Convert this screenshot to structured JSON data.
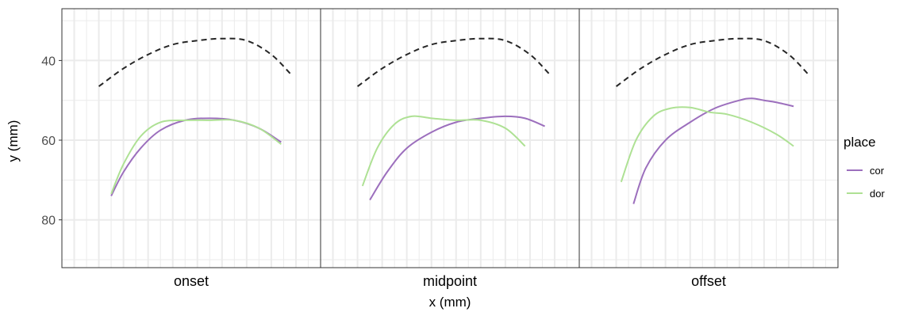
{
  "chart_data": {
    "type": "line",
    "xlabel": "x (mm)",
    "ylabel": "y (mm)",
    "ylim": [
      92,
      27
    ],
    "y_reversed": true,
    "y_ticks": [
      40,
      60,
      80
    ],
    "x_ticks": [],
    "grid": true,
    "legend": {
      "title": "place",
      "placement": "right",
      "entries": [
        "cor",
        "dor"
      ]
    },
    "colors": {
      "cor": "#9c6fbd",
      "dor": "#aee194",
      "reference": "#262626",
      "frame": "#333333",
      "grid": "#ebebeb"
    },
    "xlim": [
      -5,
      100
    ],
    "panels": [
      {
        "label": "onset",
        "series": [
          {
            "name": "reference",
            "style": "dashed",
            "x": [
              10,
              20,
              30,
              40,
              50,
              60,
              70,
              80,
              88
            ],
            "y": [
              46.5,
              42,
              38.5,
              36,
              35,
              34.5,
              35,
              38.5,
              43.5
            ]
          },
          {
            "name": "cor",
            "style": "solid",
            "x": [
              15,
              20,
              27,
              35,
              45,
              55,
              65,
              75,
              84
            ],
            "y": [
              74,
              68,
              62,
              57.5,
              55,
              54.5,
              55,
              57,
              60.5
            ]
          },
          {
            "name": "dor",
            "style": "solid",
            "x": [
              15,
              20,
              27,
              35,
              45,
              55,
              65,
              75,
              84
            ],
            "y": [
              73.5,
              66,
              59,
              55.5,
              55,
              55,
              55,
              57,
              61
            ]
          }
        ]
      },
      {
        "label": "midpoint",
        "series": [
          {
            "name": "reference",
            "style": "dashed",
            "x": [
              10,
              20,
              30,
              40,
              50,
              60,
              70,
              80,
              88
            ],
            "y": [
              46.5,
              42,
              38.5,
              36,
              35,
              34.5,
              35,
              38.5,
              43.5
            ]
          },
          {
            "name": "cor",
            "style": "solid",
            "x": [
              15,
              22,
              30,
              40,
              50,
              60,
              70,
              78,
              86
            ],
            "y": [
              75,
              68,
              62,
              58,
              55.5,
              54.5,
              54,
              54.5,
              56.5
            ]
          },
          {
            "name": "dor",
            "style": "solid",
            "x": [
              12,
              18,
              25,
              32,
              40,
              50,
              60,
              70,
              78
            ],
            "y": [
              71.5,
              62,
              56,
              54,
              54.5,
              55,
              55,
              57,
              61.5
            ]
          }
        ]
      },
      {
        "label": "offset",
        "series": [
          {
            "name": "reference",
            "style": "dashed",
            "x": [
              10,
              20,
              30,
              40,
              50,
              60,
              70,
              80,
              88
            ],
            "y": [
              46.5,
              42,
              38.5,
              36,
              35,
              34.5,
              35,
              38.5,
              43.5
            ]
          },
          {
            "name": "cor",
            "style": "solid",
            "x": [
              17,
              22,
              30,
              40,
              50,
              60,
              65,
              70,
              75,
              82
            ],
            "y": [
              76,
              67,
              60,
              55.5,
              52,
              50,
              49.5,
              50,
              50.5,
              51.5
            ]
          },
          {
            "name": "dor",
            "style": "solid",
            "x": [
              12,
              18,
              25,
              32,
              40,
              48,
              55,
              65,
              75,
              82
            ],
            "y": [
              70.5,
              60,
              54,
              52,
              51.8,
              53,
              53.5,
              55.5,
              58.5,
              61.5
            ]
          }
        ]
      }
    ]
  }
}
